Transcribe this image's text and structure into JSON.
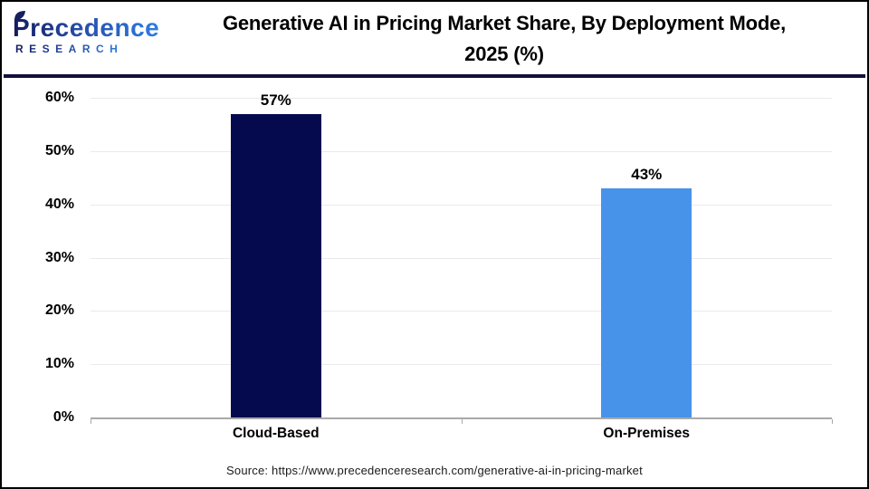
{
  "header": {
    "logo": {
      "name": "Precedence",
      "subname": "RESEARCH"
    },
    "title_line1": "Generative AI in Pricing Market Share, By Deployment Mode,",
    "title_line2": "2025 (%)"
  },
  "chart_data": {
    "type": "bar",
    "title": "Generative AI in Pricing Market Share, By Deployment Mode, 2025 (%)",
    "categories": [
      "Cloud-Based",
      "On-Premises"
    ],
    "values": [
      57,
      43
    ],
    "value_labels": [
      "57%",
      "43%"
    ],
    "bar_colors": [
      "#050a4e",
      "#4793ea"
    ],
    "xlabel": "",
    "ylabel": "",
    "ylim": [
      0,
      60
    ],
    "yticks": [
      0,
      10,
      20,
      30,
      40,
      50,
      60
    ],
    "ytick_labels": [
      "0%",
      "10%",
      "20%",
      "30%",
      "40%",
      "50%",
      "60%"
    ],
    "grid": "horizontal",
    "legend": "none"
  },
  "source": {
    "text": "Source: https://www.precedenceresearch.com/generative-ai-in-pricing-market"
  },
  "colors": {
    "divider": "#101040",
    "grid": "#e9eaeb",
    "axis": "#a9a9a9",
    "title_text": "#000000",
    "background": "#ffffff"
  }
}
